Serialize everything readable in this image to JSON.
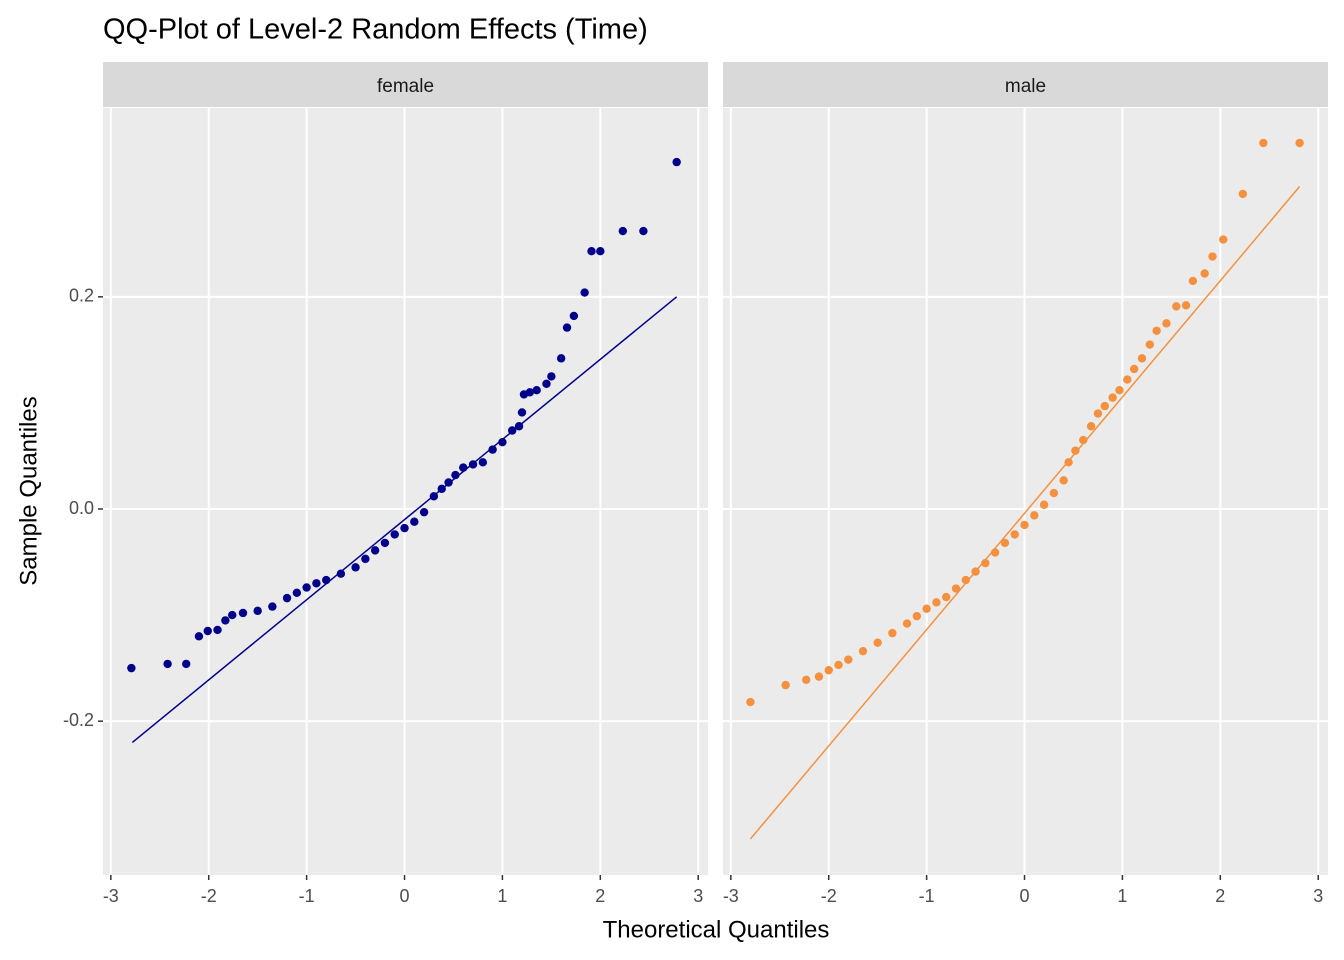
{
  "chart_data": {
    "type": "scatter",
    "title": "QQ-Plot of Level-2 Random Effects (Time)",
    "x_label": "Theoretical Quantiles",
    "y_label": "Sample Quantiles",
    "xlim": [
      -3.08,
      3.1
    ],
    "ylim": [
      -0.345,
      0.378
    ],
    "xticks": [
      -3,
      -2,
      -1,
      0,
      1,
      2,
      3
    ],
    "yticks": [
      -0.2,
      {
        "value": 0,
        "label": "0.0"
      },
      0.2
    ],
    "grid": true,
    "panels": [
      {
        "name": "female",
        "color": "#00008b",
        "x": [
          -2.79,
          -2.42,
          -2.23,
          -2.1,
          -2.01,
          -1.91,
          -1.83,
          -1.76,
          -1.65,
          -1.5,
          -1.35,
          -1.2,
          -1.1,
          -1.0,
          -0.9,
          -0.8,
          -0.65,
          -0.5,
          -0.4,
          -0.3,
          -0.2,
          -0.1,
          0.0,
          0.1,
          0.2,
          0.3,
          0.38,
          0.45,
          0.52,
          0.6,
          0.7,
          0.8,
          0.9,
          1.0,
          1.1,
          1.17,
          1.2,
          1.22,
          1.28,
          1.35,
          1.45,
          1.5,
          1.6,
          1.66,
          1.73,
          1.84,
          1.91,
          2.0,
          2.23,
          2.44,
          2.78
        ],
        "y": [
          -0.15,
          -0.146,
          -0.146,
          -0.12,
          -0.115,
          -0.114,
          -0.105,
          -0.1,
          -0.098,
          -0.096,
          -0.092,
          -0.084,
          -0.079,
          -0.074,
          -0.07,
          -0.067,
          -0.061,
          -0.055,
          -0.047,
          -0.039,
          -0.032,
          -0.024,
          -0.018,
          -0.012,
          -0.003,
          0.012,
          0.019,
          0.025,
          0.032,
          0.039,
          0.042,
          0.044,
          0.056,
          0.063,
          0.074,
          0.078,
          0.091,
          0.108,
          0.11,
          0.112,
          0.118,
          0.125,
          0.142,
          0.171,
          0.182,
          0.204,
          0.243,
          0.243,
          0.262,
          0.262,
          0.327
        ],
        "line": {
          "x": [
            -2.78,
            2.78
          ],
          "y": [
            -0.22,
            0.2
          ]
        }
      },
      {
        "name": "male",
        "color": "#f5913e",
        "x": [
          -2.8,
          -2.44,
          -2.23,
          -2.1,
          -2.0,
          -1.9,
          -1.8,
          -1.65,
          -1.5,
          -1.35,
          -1.2,
          -1.1,
          -1.0,
          -0.9,
          -0.8,
          -0.7,
          -0.6,
          -0.5,
          -0.4,
          -0.3,
          -0.2,
          -0.1,
          0.0,
          0.1,
          0.2,
          0.3,
          0.4,
          0.45,
          0.52,
          0.6,
          0.68,
          0.75,
          0.82,
          0.9,
          0.97,
          1.05,
          1.12,
          1.2,
          1.28,
          1.35,
          1.45,
          1.55,
          1.65,
          1.72,
          1.84,
          1.92,
          2.03,
          2.23,
          2.44,
          2.81
        ],
        "y": [
          -0.182,
          -0.166,
          -0.161,
          -0.158,
          -0.152,
          -0.147,
          -0.142,
          -0.134,
          -0.126,
          -0.117,
          -0.108,
          -0.101,
          -0.094,
          -0.088,
          -0.083,
          -0.075,
          -0.067,
          -0.059,
          -0.051,
          -0.041,
          -0.032,
          -0.024,
          -0.015,
          -0.006,
          0.004,
          0.015,
          0.027,
          0.044,
          0.055,
          0.065,
          0.078,
          0.09,
          0.097,
          0.105,
          0.112,
          0.122,
          0.132,
          0.142,
          0.155,
          0.168,
          0.175,
          0.191,
          0.192,
          0.215,
          0.222,
          0.238,
          0.254,
          0.297,
          0.345,
          0.345
        ],
        "line": {
          "x": [
            -2.8,
            2.81
          ],
          "y": [
            -0.311,
            0.304
          ]
        }
      }
    ]
  }
}
